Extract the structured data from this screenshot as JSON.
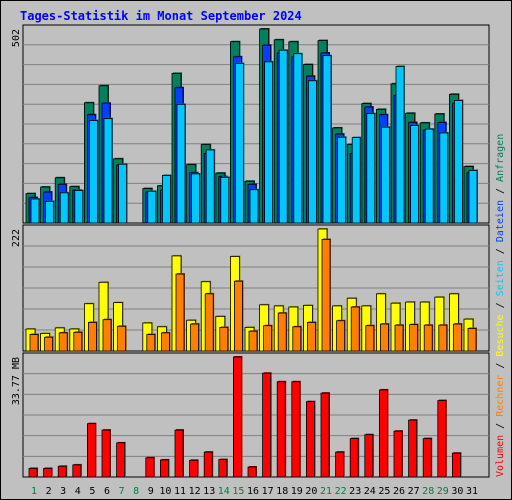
{
  "title": "Tages-Statistik im Monat September 2024",
  "colors": {
    "title": "#0000ff",
    "background": "#c0c0c0",
    "anfragen": "#00805c",
    "dateien": "#0040ff",
    "seiten": "#00c8ff",
    "besuche": "#ffff00",
    "rechner": "#ff8000",
    "volumen": "#ff0000",
    "weekday_label": "#000000",
    "weekend_label": "#008040"
  },
  "chart_data": {
    "type": "bar",
    "categories": [
      "1",
      "2",
      "3",
      "4",
      "5",
      "6",
      "7",
      "8",
      "9",
      "10",
      "11",
      "12",
      "13",
      "14",
      "15",
      "16",
      "17",
      "18",
      "19",
      "20",
      "21",
      "22",
      "23",
      "24",
      "25",
      "26",
      "27",
      "28",
      "29",
      "30",
      "31"
    ],
    "weekend_days": [
      "1",
      "7",
      "8",
      "14",
      "15",
      "21",
      "22",
      "28",
      "29"
    ],
    "panels": [
      {
        "id": "requests",
        "max_label": "502",
        "max": 502,
        "series": [
          {
            "name": "Anfragen",
            "color_key": "anfragen",
            "values": [
              76,
              93,
              117,
              94,
              311,
              355,
              166,
              0,
              89,
              96,
              387,
              151,
              203,
              129,
              469,
              108,
              502,
              474,
              469,
              410,
              472,
              246,
              203,
              309,
              294,
              360,
              284,
              259,
              282,
              333,
              146
            ]
          },
          {
            "name": "Dateien",
            "color_key": "dateien",
            "values": [
              66,
              80,
              100,
              85,
              280,
              310,
              150,
              0,
              80,
              85,
              350,
              130,
              180,
              120,
              430,
              100,
              460,
              440,
              430,
              380,
              440,
              230,
              180,
              300,
              280,
              330,
              260,
              240,
              260,
              310,
              130
            ]
          },
          {
            "name": "Seiten",
            "color_key": "seiten",
            "values": [
              62,
              56,
              78,
              84,
              265,
              270,
              152,
              0,
              82,
              123,
              307,
              127,
              189,
              118,
              413,
              86,
              417,
              447,
              438,
              368,
              433,
              222,
              221,
              283,
              248,
              405,
              252,
              243,
              233,
              317,
              136
            ]
          }
        ]
      },
      {
        "id": "visits",
        "max_label": "222",
        "max": 222,
        "series": [
          {
            "name": "Besuche",
            "color_key": "besuche",
            "values": [
              40,
              32,
              42,
              40,
              86,
              125,
              88,
              0,
              51,
              44,
              173,
              56,
              126,
              63,
              172,
              43,
              84,
              82,
              80,
              83,
              222,
              82,
              96,
              82,
              104,
              87,
              89,
              89,
              98,
              104,
              58
            ]
          },
          {
            "name": "Rechner",
            "color_key": "rechner",
            "values": [
              30,
              25,
              33,
              34,
              52,
              57,
              45,
              0,
              30,
              33,
              140,
              49,
              104,
              43,
              127,
              36,
              46,
              69,
              44,
              52,
              203,
              55,
              80,
              46,
              49,
              47,
              48,
              47,
              47,
              49,
              41
            ]
          }
        ]
      },
      {
        "id": "volume",
        "max_label": "33.77 MB",
        "max": 33.77,
        "series": [
          {
            "name": "Volumen",
            "color_key": "volumen",
            "values": [
              2.4,
              2.4,
              3.0,
              3.4,
              15.0,
              13.2,
              9.6,
              0,
              5.4,
              4.8,
              13.2,
              4.7,
              7.0,
              4.9,
              33.77,
              2.8,
              29.2,
              26.8,
              26.8,
              21.2,
              23.6,
              7.0,
              10.8,
              11.9,
              24.5,
              12.9,
              16.0,
              10.8,
              21.5,
              6.7,
              0
            ]
          }
        ]
      }
    ],
    "side_label": [
      {
        "text": "Volumen",
        "color_key": "volumen"
      },
      {
        "text": " / ",
        "color_key": "weekday_label"
      },
      {
        "text": "Rechner",
        "color_key": "rechner"
      },
      {
        "text": " / ",
        "color_key": "weekday_label"
      },
      {
        "text": "Besuche",
        "color_key": "besuche"
      },
      {
        "text": " / ",
        "color_key": "weekday_label"
      },
      {
        "text": "Seiten",
        "color_key": "seiten"
      },
      {
        "text": " / ",
        "color_key": "weekday_label"
      },
      {
        "text": "Dateien",
        "color_key": "dateien"
      },
      {
        "text": " / ",
        "color_key": "weekday_label"
      },
      {
        "text": "Anfragen",
        "color_key": "anfragen"
      }
    ]
  }
}
